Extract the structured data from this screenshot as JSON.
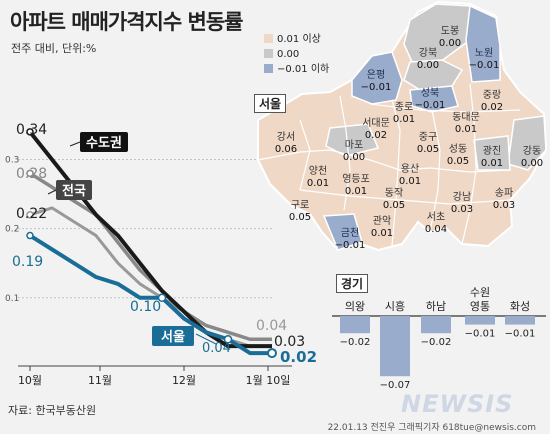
{
  "title": "아파트 매매가격지수 변동률",
  "subtitle": "전주 대비, 단위:%",
  "source": "자료: 한국부동산원",
  "credit": "22.01.13 전진우 그래픽기자 618tue@newsis.com",
  "watermark": "NEWSIS",
  "legend": {
    "items": [
      {
        "label": "0.01 이상",
        "color": "#f0d8c6"
      },
      {
        "label": "0.00",
        "color": "#c9c9c9"
      },
      {
        "label": "−0.01 이하",
        "color": "#9aaccb"
      }
    ]
  },
  "map_title": "서울",
  "gyeonggi_title": "경기",
  "chart_data": [
    {
      "type": "line",
      "y_ticks": [
        "0.3",
        "0.2",
        "0.1"
      ],
      "ylim": [
        0.01,
        0.36
      ],
      "x_labels": [
        "10월",
        "11월",
        "12월",
        "1월 10일"
      ],
      "series": [
        {
          "name": "수도권",
          "color": "#1a1a1a",
          "values": [
            0.34,
            0.3,
            0.26,
            0.22,
            0.19,
            0.15,
            0.11,
            0.08,
            0.05,
            0.03,
            0.03,
            0.03
          ],
          "start_label": "0.34",
          "end_label": "0.03"
        },
        {
          "name": "전국",
          "color": "#888888",
          "values": [
            0.28,
            0.26,
            0.24,
            0.22,
            0.18,
            0.14,
            0.11,
            0.08,
            0.06,
            0.05,
            0.04,
            0.04
          ],
          "start_label": "0.28",
          "end_label": "0.04"
        },
        {
          "name": "",
          "color": "#999999",
          "values": [
            0.22,
            0.23,
            0.21,
            0.19,
            0.15,
            0.12,
            0.1,
            0.08,
            0.05,
            0.04,
            0.03,
            0.03
          ],
          "start_label": "0.22",
          "end_label": ""
        },
        {
          "name": "서울",
          "color": "#1a6d96",
          "values": [
            0.19,
            0.17,
            0.15,
            0.13,
            0.12,
            0.1,
            0.1,
            0.07,
            0.05,
            0.04,
            0.02,
            0.02
          ],
          "start_label": "0.19",
          "end_label": "0.02",
          "marked": {
            "6": "0.10",
            "9": "0.04"
          }
        }
      ]
    },
    {
      "type": "bar",
      "title": "경기",
      "categories": [
        "의왕",
        "시흥",
        "하남",
        "수원 영통",
        "화성"
      ],
      "values": [
        -0.02,
        -0.07,
        -0.02,
        -0.01,
        -0.01
      ],
      "labels": [
        "−0.02",
        "−0.07",
        "−0.02",
        "−0.01",
        "−0.01"
      ]
    }
  ],
  "seoul_districts": [
    {
      "name": "도봉",
      "value": "0.00",
      "color": "#c9c9c9"
    },
    {
      "name": "노원",
      "value": "−0.01",
      "color": "#9aaccb"
    },
    {
      "name": "강북",
      "value": "0.00",
      "color": "#c9c9c9"
    },
    {
      "name": "은평",
      "value": "−0.01",
      "color": "#9aaccb"
    },
    {
      "name": "성북",
      "value": "−0.01",
      "color": "#9aaccb"
    },
    {
      "name": "중랑",
      "value": "0.02",
      "color": "#f0d8c6"
    },
    {
      "name": "종로",
      "value": "0.01",
      "color": "#f0d8c6"
    },
    {
      "name": "동대문",
      "value": "0.01",
      "color": "#f0d8c6"
    },
    {
      "name": "서대문",
      "value": "0.02",
      "color": "#f0d8c6"
    },
    {
      "name": "강서",
      "value": "0.06",
      "color": "#f0d8c6"
    },
    {
      "name": "마포",
      "value": "0.00",
      "color": "#c9c9c9"
    },
    {
      "name": "중구",
      "value": "0.05",
      "color": "#f0d8c6"
    },
    {
      "name": "성동",
      "value": "0.05",
      "color": "#f0d8c6"
    },
    {
      "name": "광진",
      "value": "0.01",
      "color": "#f0d8c6"
    },
    {
      "name": "강동",
      "value": "0.00",
      "color": "#c9c9c9"
    },
    {
      "name": "양천",
      "value": "0.01",
      "color": "#f0d8c6"
    },
    {
      "name": "영등포",
      "value": "0.01",
      "color": "#f0d8c6"
    },
    {
      "name": "용산",
      "value": "0.01",
      "color": "#f0d8c6"
    },
    {
      "name": "구로",
      "value": "0.05",
      "color": "#f0d8c6"
    },
    {
      "name": "동작",
      "value": "0.05",
      "color": "#f0d8c6"
    },
    {
      "name": "강남",
      "value": "0.03",
      "color": "#f0d8c6"
    },
    {
      "name": "송파",
      "value": "0.03",
      "color": "#f0d8c6"
    },
    {
      "name": "금천",
      "value": "−0.01",
      "color": "#9aaccb"
    },
    {
      "name": "관악",
      "value": "0.01",
      "color": "#f0d8c6"
    },
    {
      "name": "서초",
      "value": "0.04",
      "color": "#f0d8c6"
    }
  ]
}
